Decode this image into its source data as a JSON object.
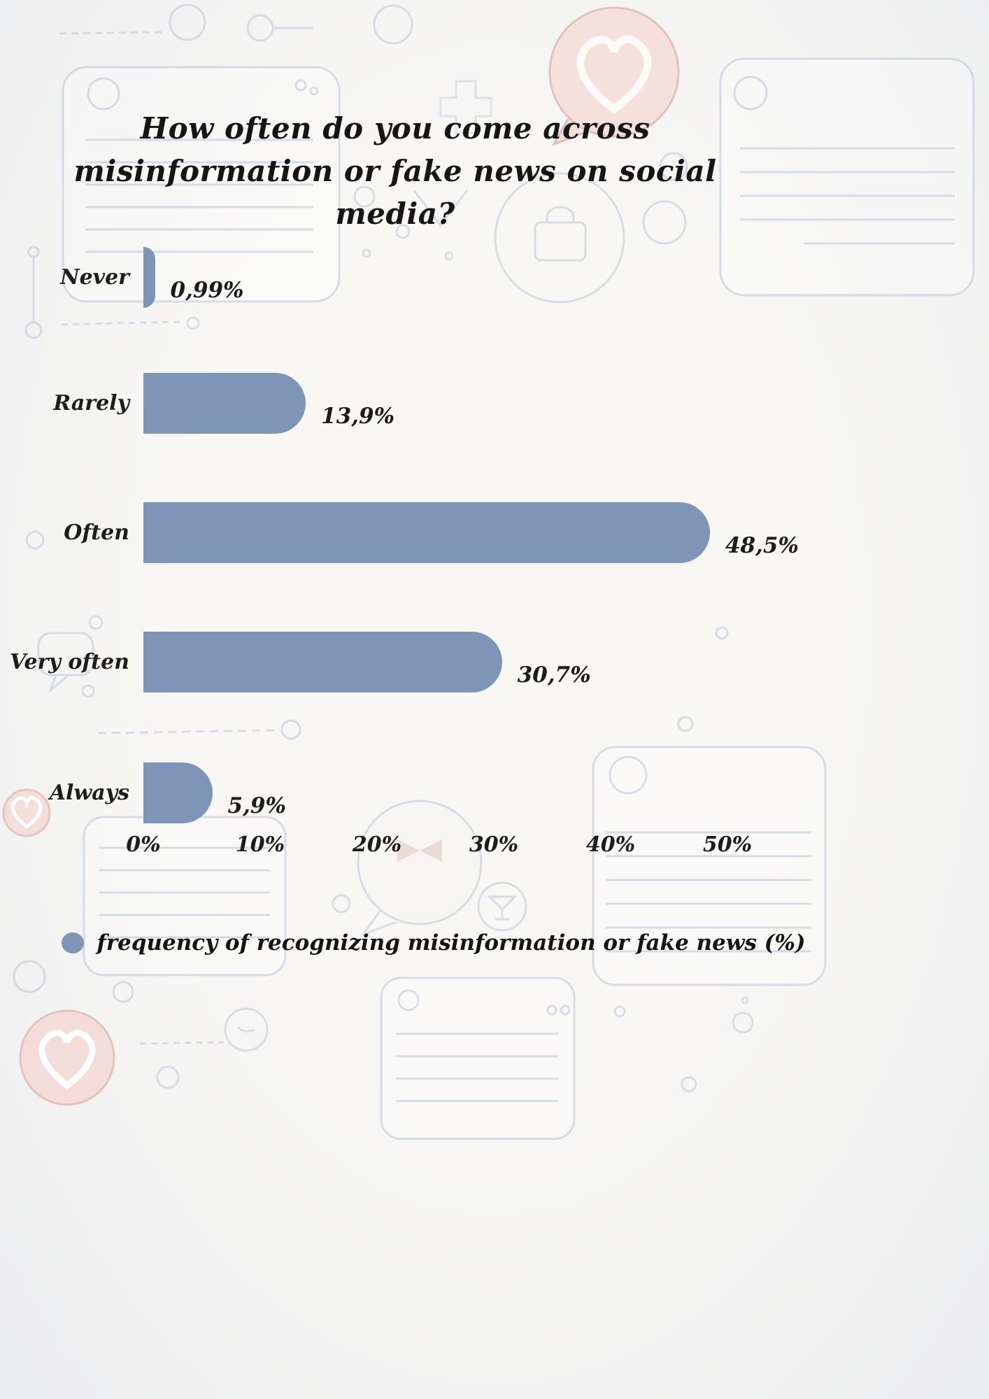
{
  "chart_data": {
    "type": "bar",
    "orientation": "horizontal",
    "title": "How often do you come across misinformation or fake news on social media?",
    "categories": [
      "Never",
      "Rarely",
      "Often",
      "Very often",
      "Always"
    ],
    "values": [
      0.99,
      13.9,
      48.5,
      30.7,
      5.9
    ],
    "value_labels": [
      "0,99%",
      "13,9%",
      "48,5%",
      "30,7%",
      "5,9%"
    ],
    "x_ticks": [
      "0%",
      "10%",
      "20%",
      "30%",
      "40%",
      "50%"
    ],
    "x_tick_values": [
      0,
      10,
      20,
      30,
      40,
      50
    ],
    "xlim": [
      0,
      50
    ],
    "xlabel": "",
    "ylabel": "",
    "grid": false,
    "legend_position": "bottom",
    "legend": "frequency of recognizing misinformation or fake news (%)",
    "bar_color": "#7e95b7",
    "background_color": "#f4f3f0"
  }
}
